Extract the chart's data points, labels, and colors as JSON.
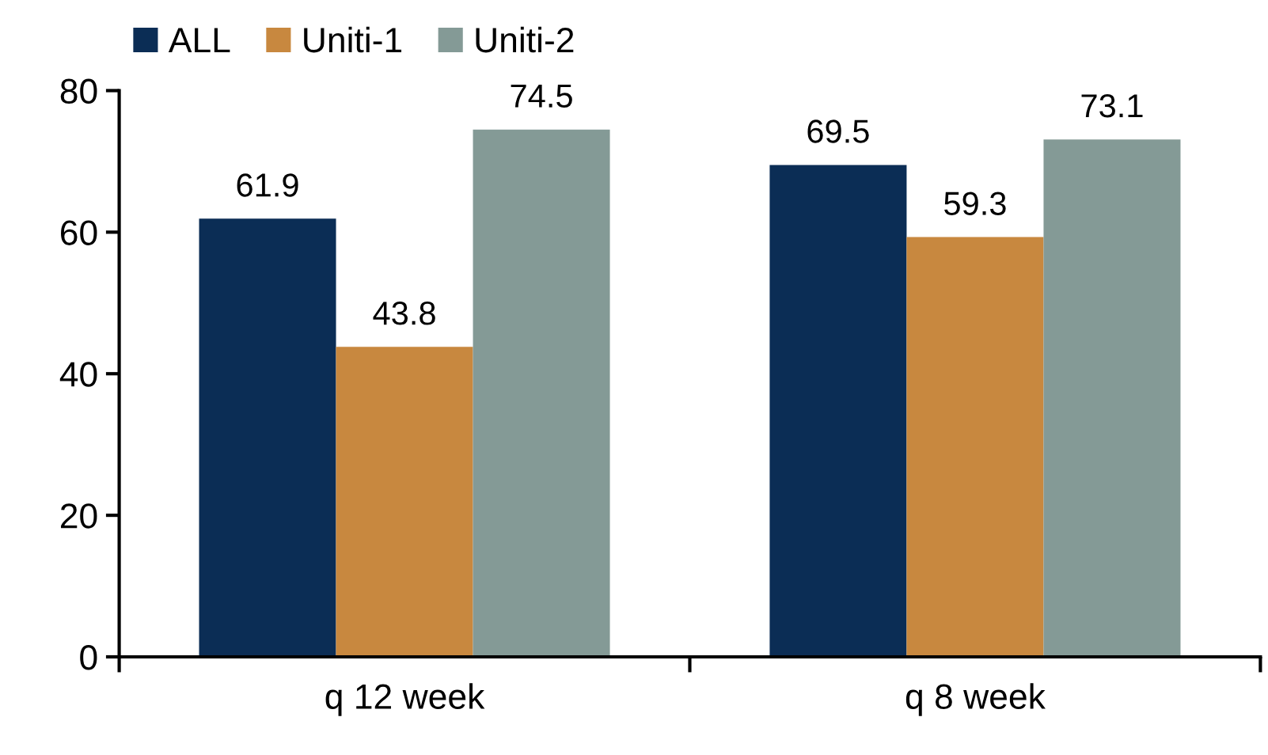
{
  "chart_data": {
    "type": "bar",
    "categories": [
      "q 12 week",
      "q 8 week"
    ],
    "series": [
      {
        "name": "ALL",
        "color": "#0b2d55",
        "values": [
          61.9,
          69.5
        ]
      },
      {
        "name": "Uniti-1",
        "color": "#c8883f",
        "values": [
          43.8,
          59.3
        ]
      },
      {
        "name": "Uniti-2",
        "color": "#849a96",
        "values": [
          74.5,
          73.1
        ]
      }
    ],
    "ylim": [
      0,
      80
    ],
    "yticks": [
      0,
      20,
      40,
      60,
      80
    ],
    "grid": false,
    "legend": "top left",
    "data_labels": true
  }
}
